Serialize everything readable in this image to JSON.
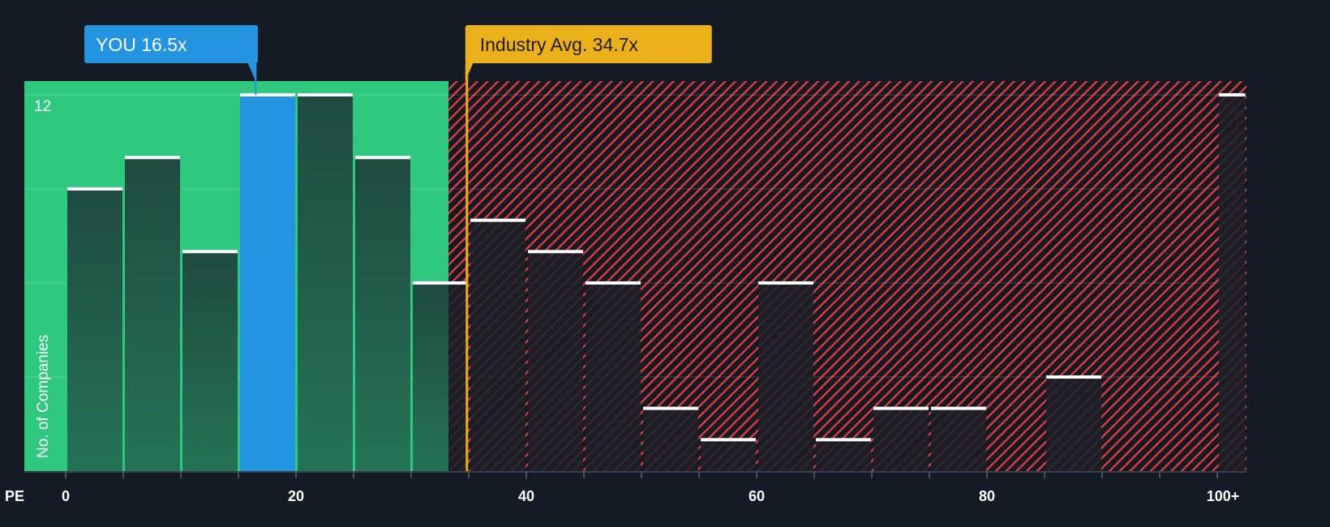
{
  "chart_data": {
    "type": "bar",
    "title": "",
    "xlabel": "PE",
    "ylabel": "No. of Companies",
    "bin_width": 5,
    "bins": [
      {
        "from": 0,
        "to": 5,
        "value": 9
      },
      {
        "from": 5,
        "to": 10,
        "value": 10
      },
      {
        "from": 10,
        "to": 15,
        "value": 7
      },
      {
        "from": 15,
        "to": 20,
        "value": 12
      },
      {
        "from": 20,
        "to": 25,
        "value": 12
      },
      {
        "from": 25,
        "to": 30,
        "value": 10
      },
      {
        "from": 30,
        "to": 35,
        "value": 6
      },
      {
        "from": 35,
        "to": 40,
        "value": 8
      },
      {
        "from": 40,
        "to": 45,
        "value": 7
      },
      {
        "from": 45,
        "to": 50,
        "value": 6
      },
      {
        "from": 50,
        "to": 55,
        "value": 2
      },
      {
        "from": 55,
        "to": 60,
        "value": 1
      },
      {
        "from": 60,
        "to": 65,
        "value": 6
      },
      {
        "from": 65,
        "to": 70,
        "value": 1
      },
      {
        "from": 70,
        "to": 75,
        "value": 2
      },
      {
        "from": 75,
        "to": 80,
        "value": 2
      },
      {
        "from": 80,
        "to": 85,
        "value": 0
      },
      {
        "from": 85,
        "to": 90,
        "value": 3
      },
      {
        "from": 90,
        "to": 95,
        "value": 0
      },
      {
        "from": 95,
        "to": 100,
        "value": 0
      },
      {
        "from": 100,
        "to": 102.5,
        "value": 12,
        "label": "100+"
      }
    ],
    "x_ticks": [
      "0",
      "20",
      "40",
      "60",
      "80",
      "100+"
    ],
    "x_tick_values": [
      0,
      20,
      40,
      60,
      80,
      100
    ],
    "y_tick_label": "12",
    "ylim": [
      0,
      12.4
    ],
    "xlim": [
      -3.6,
      102.5
    ],
    "y_gridlines": [
      3,
      6,
      9,
      12
    ],
    "highlight_bin": 3,
    "markers": {
      "you": {
        "label": "YOU 16.5x",
        "value": 16.5,
        "color": "#2394e0"
      },
      "industry": {
        "label": "Industry Avg. 34.7x",
        "value": 34.7,
        "color": "#ecb01b"
      }
    },
    "colors": {
      "background": "#151b24",
      "green": "#2ec97f",
      "red": "#e03a3a",
      "bar_green": "#226a53",
      "bar_dark": "#1b1f28"
    }
  }
}
